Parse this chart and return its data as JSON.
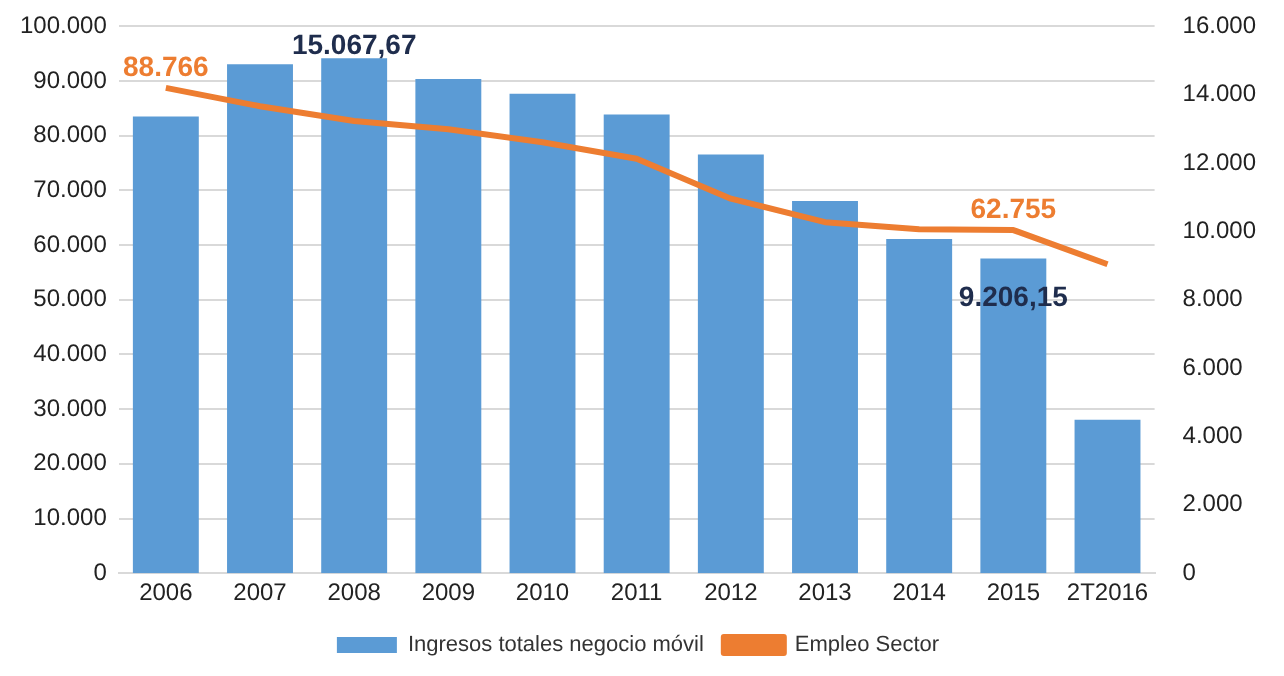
{
  "chart_data": {
    "type": "bar",
    "categories": [
      "2006",
      "2007",
      "2008",
      "2009",
      "2010",
      "2011",
      "2012",
      "2013",
      "2014",
      "2015",
      "2T2016"
    ],
    "series": [
      {
        "name": "Ingresos totales negocio móvil",
        "axis": "y2",
        "color": "#5b9bd5",
        "values": [
          13360,
          14890,
          15067.67,
          14460,
          14030,
          13420,
          12250,
          10890,
          9780,
          9206.15,
          4490
        ],
        "value_labels": [
          null,
          null,
          "15.067,67",
          null,
          null,
          null,
          null,
          null,
          null,
          "9.206,15",
          null
        ]
      },
      {
        "name": "Empleo Sector",
        "type": "line",
        "color": "#ed7d31",
        "values": [
          88766,
          85400,
          82700,
          81200,
          78800,
          75800,
          68500,
          64200,
          62900,
          62755,
          56500
        ],
        "value_labels": [
          "88.766",
          null,
          null,
          null,
          null,
          null,
          null,
          null,
          null,
          "62.755",
          null
        ]
      }
    ],
    "ylim": [
      0,
      100000
    ],
    "yticks": [
      {
        "value": 0,
        "label": "0"
      },
      {
        "value": 10000,
        "label": "10.000"
      },
      {
        "value": 20000,
        "label": "20.000"
      },
      {
        "value": 30000,
        "label": "30.000"
      },
      {
        "value": 40000,
        "label": "40.000"
      },
      {
        "value": 50000,
        "label": "50.000"
      },
      {
        "value": 60000,
        "label": "60.000"
      },
      {
        "value": 70000,
        "label": "70.000"
      },
      {
        "value": 80000,
        "label": "80.000"
      },
      {
        "value": 90000,
        "label": "90.000"
      },
      {
        "value": 100000,
        "label": "100.000"
      }
    ],
    "y2lim": [
      0,
      16000
    ],
    "y2ticks": [
      {
        "value": 0,
        "label": "0"
      },
      {
        "value": 2000,
        "label": "2.000"
      },
      {
        "value": 4000,
        "label": "4.000"
      },
      {
        "value": 6000,
        "label": "6.000"
      },
      {
        "value": 8000,
        "label": "8.000"
      },
      {
        "value": 10000,
        "label": "10.000"
      },
      {
        "value": 12000,
        "label": "12.000"
      },
      {
        "value": 14000,
        "label": "14.000"
      },
      {
        "value": 16000,
        "label": "16.000"
      }
    ],
    "grid": "y",
    "legend": "bottom",
    "marker": "none",
    "line_style": "solid"
  }
}
